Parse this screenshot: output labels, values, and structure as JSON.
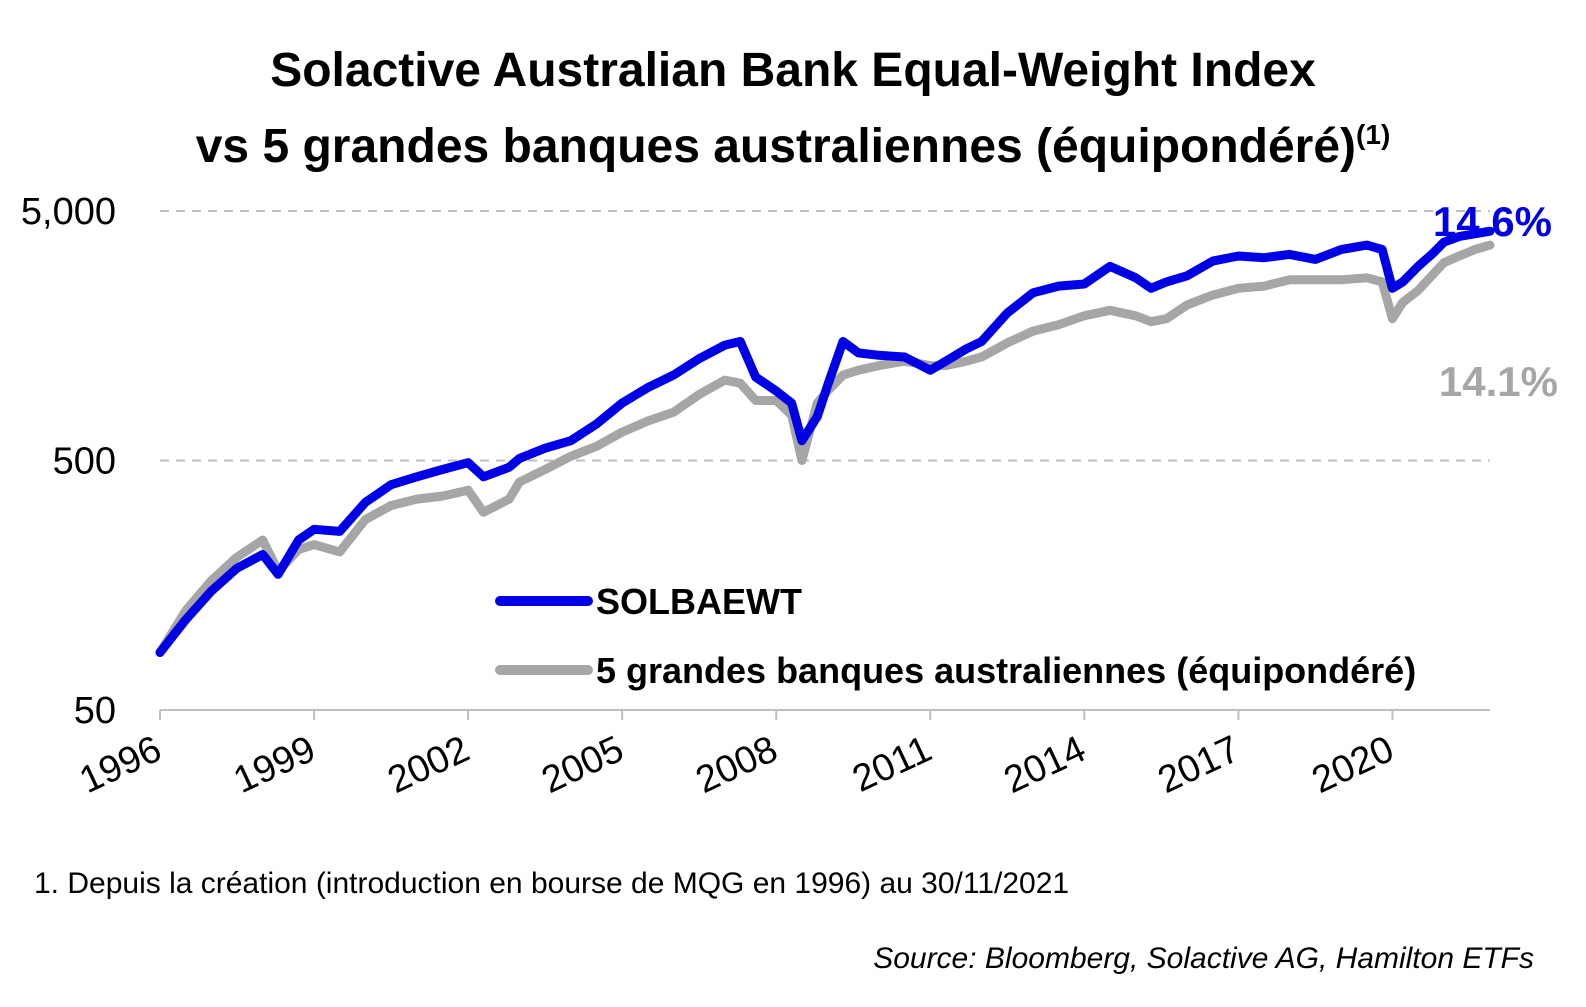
{
  "chart_data": {
    "type": "line",
    "title_line1": "Solactive Australian Bank Equal-Weight Index",
    "title_line2": "vs 5 grandes banques australiennes (équipondéré)",
    "title_superscript": "(1)",
    "y_scale": "log",
    "ylim": [
      50,
      5000
    ],
    "yticks": [
      50,
      500,
      5000
    ],
    "ytick_labels": [
      "50",
      "500",
      "5,000"
    ],
    "xlim": [
      1996,
      2021.9
    ],
    "xticks": [
      1996,
      1999,
      2002,
      2005,
      2008,
      2011,
      2014,
      2017,
      2020
    ],
    "xtick_labels": [
      "1996",
      "1999",
      "2002",
      "2005",
      "2008",
      "2011",
      "2014",
      "2017",
      "2020"
    ],
    "grid": "horizontal dashed at 500 and 5,000",
    "legend_placement": "center-bottom",
    "series": [
      {
        "name": "SOLBAEWT",
        "color": "#0000E6",
        "end_label": "14.6%",
        "x": [
          1996.0,
          1996.5,
          1997.0,
          1997.5,
          1998.0,
          1998.3,
          1998.7,
          1999.0,
          1999.5,
          2000.0,
          2000.5,
          2001.0,
          2001.5,
          2002.0,
          2002.3,
          2002.8,
          2003.0,
          2003.5,
          2004.0,
          2004.5,
          2005.0,
          2005.5,
          2006.0,
          2006.5,
          2007.0,
          2007.3,
          2007.6,
          2008.0,
          2008.3,
          2008.5,
          2008.8,
          2009.0,
          2009.3,
          2009.6,
          2010.0,
          2010.5,
          2011.0,
          2011.3,
          2011.7,
          2012.0,
          2012.5,
          2013.0,
          2013.5,
          2014.0,
          2014.5,
          2015.0,
          2015.3,
          2015.6,
          2016.0,
          2016.5,
          2017.0,
          2017.5,
          2018.0,
          2018.5,
          2019.0,
          2019.5,
          2019.8,
          2020.0,
          2020.2,
          2020.5,
          2020.8,
          2021.0,
          2021.3,
          2021.6,
          2021.9
        ],
        "y": [
          85,
          115,
          150,
          185,
          210,
          175,
          240,
          265,
          260,
          340,
          400,
          430,
          460,
          490,
          430,
          470,
          510,
          560,
          600,
          700,
          850,
          980,
          1100,
          1280,
          1450,
          1500,
          1080,
          950,
          850,
          600,
          750,
          1000,
          1500,
          1350,
          1320,
          1300,
          1150,
          1250,
          1400,
          1500,
          1950,
          2350,
          2500,
          2550,
          3000,
          2700,
          2450,
          2600,
          2750,
          3150,
          3300,
          3250,
          3350,
          3200,
          3500,
          3650,
          3500,
          2450,
          2600,
          3000,
          3400,
          3750,
          3950,
          4050,
          4150
        ]
      },
      {
        "name": "5 grandes banques australiennes (équipondéré)",
        "color": "#A6A6A6",
        "end_label": "14.1%",
        "x": [
          1996.0,
          1996.5,
          1997.0,
          1997.5,
          1998.0,
          1998.3,
          1998.7,
          1999.0,
          1999.5,
          2000.0,
          2000.5,
          2001.0,
          2001.5,
          2002.0,
          2002.3,
          2002.8,
          2003.0,
          2003.5,
          2004.0,
          2004.5,
          2005.0,
          2005.5,
          2006.0,
          2006.5,
          2007.0,
          2007.3,
          2007.6,
          2008.0,
          2008.3,
          2008.5,
          2008.8,
          2009.0,
          2009.3,
          2009.6,
          2010.0,
          2010.5,
          2011.0,
          2011.3,
          2011.7,
          2012.0,
          2012.5,
          2013.0,
          2013.5,
          2014.0,
          2014.5,
          2015.0,
          2015.3,
          2015.6,
          2016.0,
          2016.5,
          2017.0,
          2017.5,
          2018.0,
          2018.5,
          2019.0,
          2019.5,
          2019.8,
          2020.0,
          2020.2,
          2020.5,
          2020.8,
          2021.0,
          2021.3,
          2021.6,
          2021.9
        ],
        "y": [
          85,
          125,
          165,
          205,
          240,
          180,
          220,
          230,
          215,
          290,
          330,
          350,
          360,
          380,
          310,
          350,
          410,
          460,
          520,
          570,
          650,
          720,
          780,
          920,
          1050,
          1020,
          870,
          870,
          760,
          500,
          850,
          950,
          1100,
          1150,
          1200,
          1250,
          1200,
          1200,
          1250,
          1300,
          1480,
          1650,
          1750,
          1900,
          2000,
          1900,
          1800,
          1850,
          2100,
          2300,
          2450,
          2500,
          2650,
          2650,
          2650,
          2700,
          2600,
          1850,
          2150,
          2400,
          2800,
          3100,
          3300,
          3500,
          3650
        ]
      }
    ],
    "footnote": "1. Depuis la création (introduction en bourse de MQG en 1996) au 30/11/2021",
    "source": "Source: Bloomberg, Solactive AG, Hamilton ETFs"
  }
}
